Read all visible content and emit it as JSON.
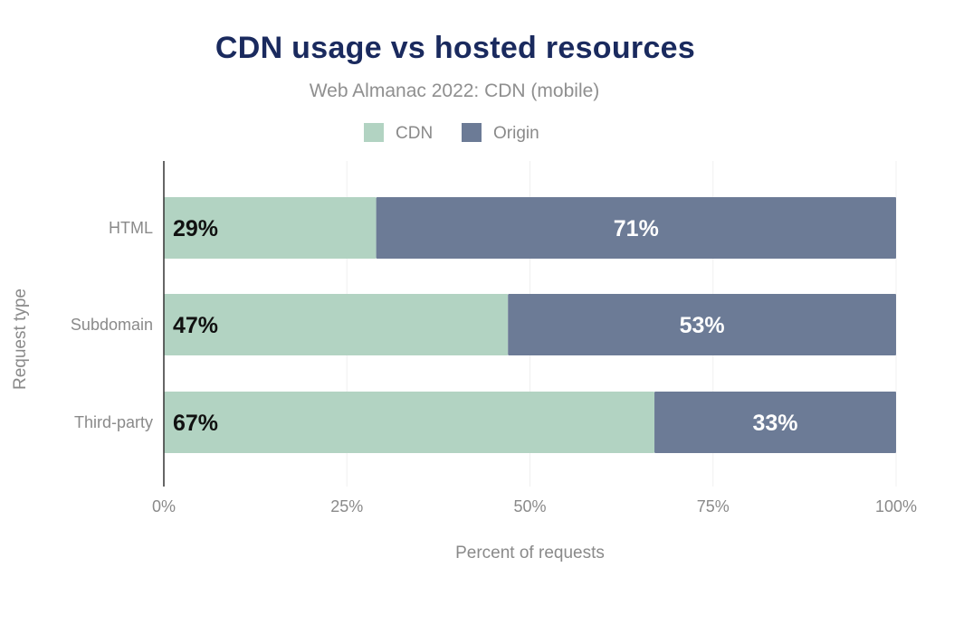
{
  "chart_data": {
    "type": "bar",
    "orientation": "horizontal",
    "stacked": true,
    "title": "CDN usage vs hosted resources",
    "subtitle": "Web Almanac 2022: CDN (mobile)",
    "xlabel": "Percent of requests",
    "ylabel": "Request type",
    "categories": [
      "HTML",
      "Subdomain",
      "Third-party"
    ],
    "series": [
      {
        "name": "CDN",
        "values": [
          29,
          47,
          67
        ],
        "labels": [
          "29%",
          "47%",
          "67%"
        ],
        "color": "#b2d3c2",
        "label_color": "#111111"
      },
      {
        "name": "Origin",
        "values": [
          71,
          53,
          33
        ],
        "labels": [
          "71%",
          "53%",
          "33%"
        ],
        "color": "#6c7b96",
        "label_color": "#ffffff"
      }
    ],
    "xlim": [
      0,
      100
    ],
    "x_ticks": [
      0,
      25,
      50,
      75,
      100
    ],
    "x_tick_labels": [
      "0%",
      "25%",
      "50%",
      "75%",
      "100%"
    ],
    "grid": "vertical",
    "legend_position": "top-center"
  }
}
